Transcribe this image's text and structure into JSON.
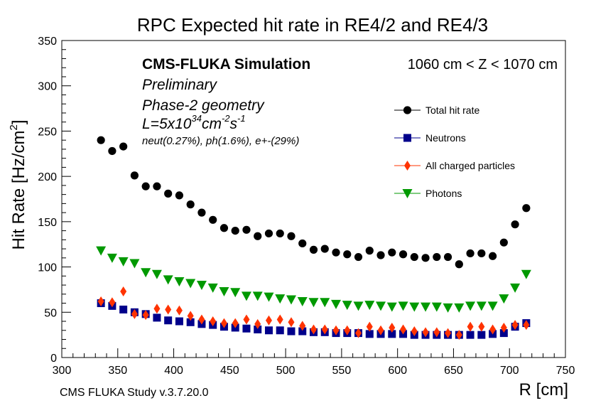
{
  "chart_data": {
    "type": "scatter",
    "title": "RPC Expected hit rate in RE4/2 and RE4/3",
    "xlabel": "R [cm]",
    "ylabel_main": "Hit Rate [Hz/cm",
    "ylabel_sup": "2",
    "ylabel_close": "]",
    "xlim": [
      300,
      750
    ],
    "ylim": [
      0,
      350
    ],
    "x_ticks": [
      300,
      350,
      400,
      450,
      500,
      550,
      600,
      650,
      700,
      750
    ],
    "y_ticks": [
      0,
      50,
      100,
      150,
      200,
      250,
      300,
      350
    ],
    "grid": false,
    "legend_position": "upper-right",
    "annotations": {
      "cms": "CMS-FLUKA Simulation",
      "preliminary": "Preliminary",
      "geometry": "Phase-2 geometry",
      "lumi_prefix": "L=5x10",
      "lumi_exp": "34",
      "lumi_cm": "cm",
      "lumi_cm_exp": "-2",
      "lumi_s": "s",
      "lumi_s_exp": "-1",
      "fractions": "neut(0.27%), ph(1.6%), e+-(29%)",
      "z_range": "1060 cm < Z < 1070 cm",
      "footer": "CMS FLUKA Study v.3.7.20.0"
    },
    "series": [
      {
        "name": "Total hit rate",
        "marker": "circle",
        "color": "#000000",
        "x": [
          335,
          345,
          355,
          365,
          375,
          385,
          395,
          405,
          415,
          425,
          435,
          445,
          455,
          465,
          475,
          485,
          495,
          505,
          515,
          525,
          535,
          545,
          555,
          565,
          575,
          585,
          595,
          605,
          615,
          625,
          635,
          645,
          655,
          665,
          675,
          685,
          695,
          705,
          715
        ],
        "y": [
          240,
          228,
          233,
          201,
          189,
          189,
          181,
          179,
          169,
          160,
          152,
          143,
          140,
          141,
          134,
          137,
          137,
          134,
          126,
          119,
          120,
          116,
          114,
          111,
          118,
          113,
          116,
          114,
          111,
          110,
          111,
          111,
          103,
          115,
          115,
          112,
          127,
          147,
          165
        ]
      },
      {
        "name": "Neutrons",
        "marker": "square",
        "color": "#00008b",
        "x": [
          335,
          345,
          355,
          365,
          375,
          385,
          395,
          405,
          415,
          425,
          435,
          445,
          455,
          465,
          475,
          485,
          495,
          505,
          515,
          525,
          535,
          545,
          555,
          565,
          575,
          585,
          595,
          605,
          615,
          625,
          635,
          645,
          655,
          665,
          675,
          685,
          695,
          705,
          715
        ],
        "y": [
          60,
          57,
          53,
          50,
          48,
          44,
          41,
          40,
          39,
          37,
          36,
          34,
          33,
          32,
          31,
          30,
          30,
          29,
          29,
          28,
          28,
          27,
          27,
          27,
          26,
          26,
          26,
          26,
          25,
          25,
          25,
          25,
          25,
          25,
          25,
          26,
          27,
          34,
          38
        ]
      },
      {
        "name": "All charged particles",
        "marker": "diamond",
        "color": "#ff3300",
        "x": [
          335,
          345,
          355,
          365,
          375,
          385,
          395,
          405,
          415,
          425,
          435,
          445,
          455,
          465,
          475,
          485,
          495,
          505,
          515,
          525,
          535,
          545,
          555,
          565,
          575,
          585,
          595,
          605,
          615,
          625,
          635,
          645,
          655,
          665,
          675,
          685,
          695,
          705,
          715
        ],
        "y": [
          62,
          61,
          73,
          48,
          47,
          54,
          53,
          52,
          46,
          42,
          40,
          38,
          38,
          42,
          37,
          41,
          42,
          39,
          35,
          31,
          31,
          30,
          30,
          27,
          34,
          30,
          33,
          31,
          29,
          28,
          28,
          27,
          25,
          34,
          34,
          31,
          33,
          36,
          36
        ]
      },
      {
        "name": "Photons",
        "marker": "triangle-down",
        "color": "#009900",
        "x": [
          335,
          345,
          355,
          365,
          375,
          385,
          395,
          405,
          415,
          425,
          435,
          445,
          455,
          465,
          475,
          485,
          495,
          505,
          515,
          525,
          535,
          545,
          555,
          565,
          575,
          585,
          595,
          605,
          615,
          625,
          635,
          645,
          655,
          665,
          675,
          685,
          695,
          705,
          715
        ],
        "y": [
          118,
          110,
          106,
          104,
          94,
          92,
          86,
          84,
          82,
          80,
          77,
          73,
          72,
          68,
          68,
          67,
          65,
          64,
          62,
          61,
          61,
          59,
          58,
          57,
          58,
          57,
          56,
          57,
          56,
          56,
          56,
          55,
          55,
          57,
          57,
          57,
          65,
          77,
          92
        ]
      }
    ]
  }
}
